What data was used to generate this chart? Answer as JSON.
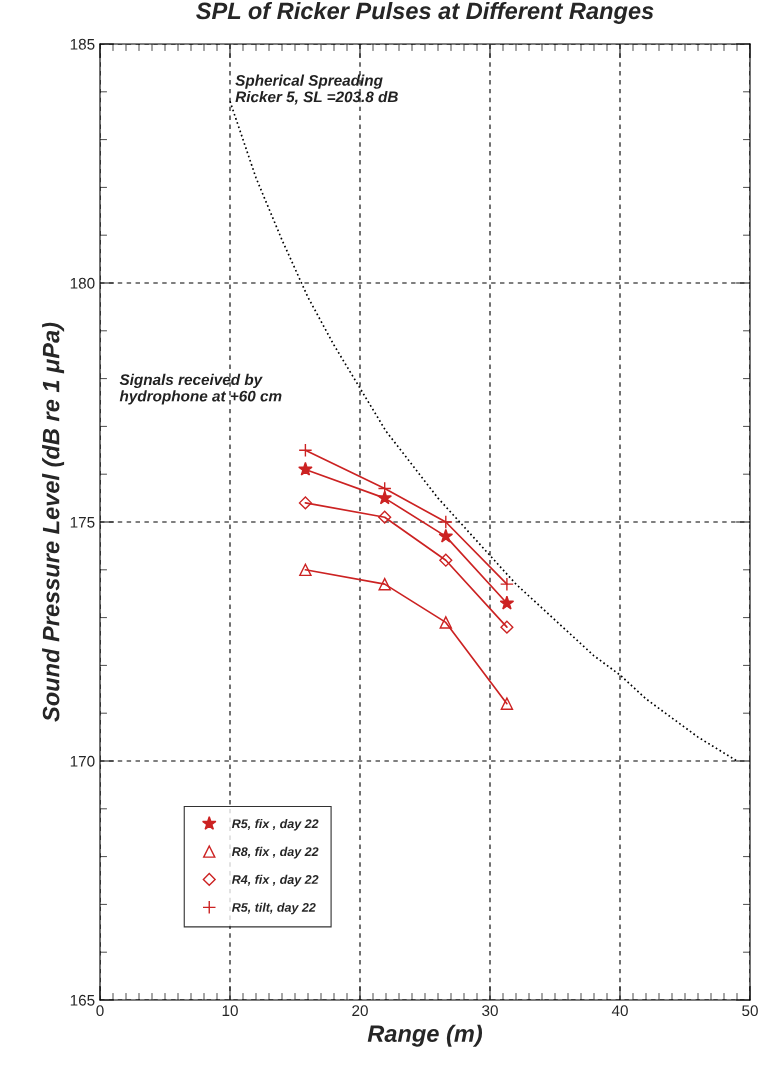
{
  "chart_data": {
    "type": "line",
    "title": "SPL of Ricker Pulses at Different Ranges",
    "xlabel": "Range (m)",
    "ylabel": "Sound Pressure Level (dB re 1 μPa)",
    "x": [
      15.8,
      21.9,
      26.6,
      31.3
    ],
    "series": [
      {
        "name": "R5, fix , day 22",
        "color": "#cc2222",
        "marker": "star",
        "values": [
          176.1,
          175.5,
          174.7,
          173.3
        ]
      },
      {
        "name": "R8, fix , day 22",
        "color": "#cc2222",
        "marker": "triangle",
        "values": [
          174.0,
          173.7,
          172.9,
          171.2
        ]
      },
      {
        "name": "R4, fix , day 22",
        "color": "#cc2222",
        "marker": "diamond",
        "values": [
          175.4,
          175.1,
          174.2,
          172.8
        ]
      },
      {
        "name": "R5, tilt, day 22",
        "color": "#cc2222",
        "marker": "cross",
        "values": [
          176.5,
          175.7,
          175.0,
          173.7
        ]
      },
      {
        "color": "#000000",
        "marker": "none",
        "line_style": "dotted",
        "x": [
          10,
          12,
          14,
          16,
          18,
          20,
          22,
          24,
          26,
          28,
          30,
          32,
          34,
          36,
          38,
          40,
          42,
          44,
          46,
          49
        ],
        "values": [
          183.8,
          182.2,
          180.9,
          179.7,
          178.7,
          177.8,
          176.9,
          176.2,
          175.5,
          174.9,
          174.3,
          173.7,
          173.2,
          172.7,
          172.2,
          171.8,
          171.3,
          170.9,
          170.5,
          170.0
        ]
      }
    ],
    "annotations": [
      "Spherical Spreading\nRicker 5, SL =203.8 dB",
      "Signals received by\nhydrophone at +60 cm"
    ],
    "xlim": [
      0,
      50
    ],
    "xticks": [
      0,
      10,
      20,
      30,
      40,
      50
    ],
    "ylim": [
      165,
      185
    ],
    "yticks": [
      165,
      170,
      175,
      180,
      185
    ],
    "grid": true,
    "legend": "bottom left"
  }
}
